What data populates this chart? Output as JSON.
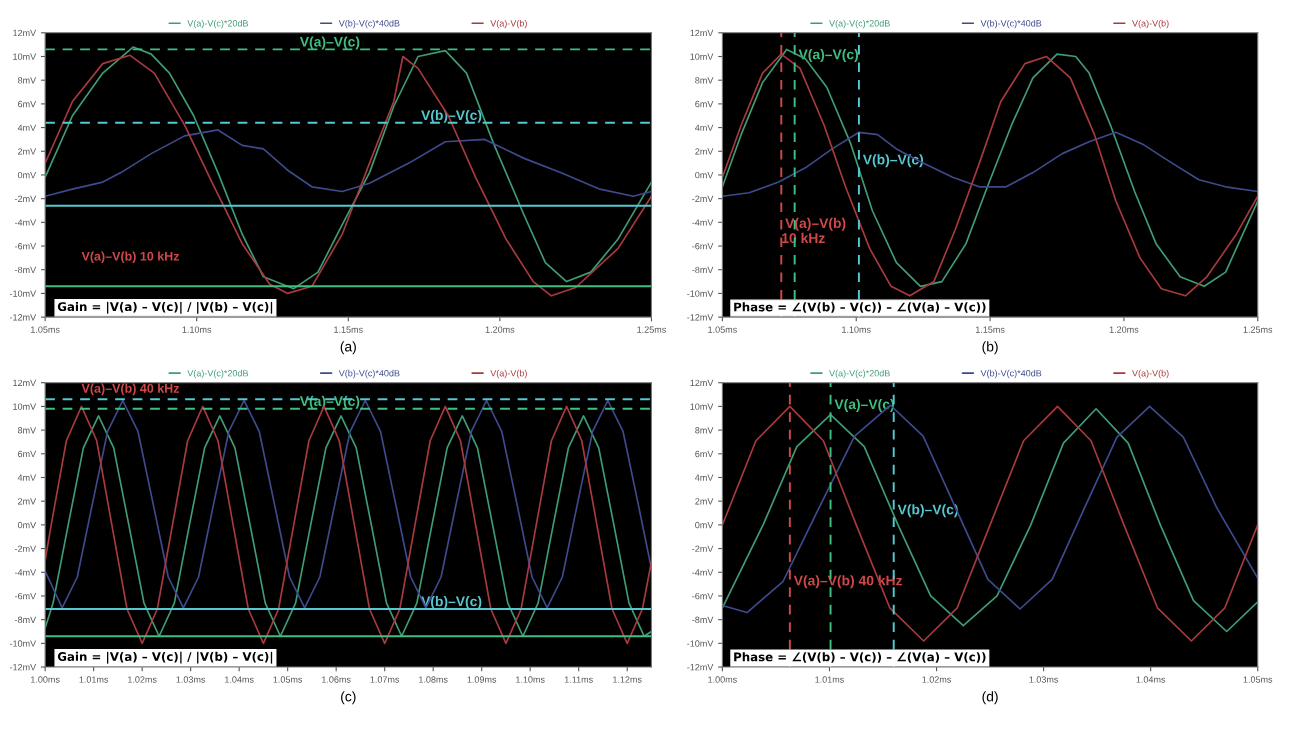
{
  "chart_data": [
    {
      "type": "line",
      "xlim": [
        1.05,
        1.25
      ],
      "xticks": [
        {
          "value": 1.05,
          "label": "1.05ms"
        },
        {
          "value": 1.1,
          "label": "1.10ms"
        },
        {
          "value": 1.15,
          "label": "1.15ms"
        },
        {
          "value": 1.2,
          "label": "1.20ms"
        },
        {
          "value": 1.25,
          "label": "1.25ms"
        }
      ],
      "ylim": [
        -12,
        12
      ],
      "yticks": [
        {
          "value": 12,
          "label": "12mV"
        },
        {
          "value": 10,
          "label": "10mV"
        },
        {
          "value": 8,
          "label": "8mV"
        },
        {
          "value": 6,
          "label": "6mV"
        },
        {
          "value": 4,
          "label": "4mV"
        },
        {
          "value": 2,
          "label": "2mV"
        },
        {
          "value": 0,
          "label": "0mV"
        },
        {
          "value": -2,
          "label": "-2mV"
        },
        {
          "value": -4,
          "label": "-4mV"
        },
        {
          "value": -6,
          "label": "-6mV"
        },
        {
          "value": -8,
          "label": "-8mV"
        },
        {
          "value": -10,
          "label": "-10mV"
        },
        {
          "value": -12,
          "label": "-12mV"
        }
      ],
      "grid": false,
      "legend": "top",
      "line_style": "solid",
      "series": [
        {
          "name": "V(a)-V(c)*20dB",
          "color": "#3f9c74",
          "x": [
            1.05,
            1.059,
            1.069,
            1.079,
            1.085,
            1.091,
            1.099,
            1.107,
            1.115,
            1.122,
            1.132,
            1.14,
            1.148,
            1.157,
            1.165,
            1.173,
            1.182,
            1.189,
            1.198,
            1.208,
            1.215,
            1.222,
            1.23,
            1.239,
            1.25
          ],
          "values": [
            -0.2,
            5.0,
            8.6,
            10.8,
            10.2,
            8.6,
            5.0,
            0.2,
            -5.0,
            -8.6,
            -9.6,
            -8.2,
            -4.2,
            0.2,
            5.8,
            10.0,
            10.5,
            8.6,
            2.6,
            -3.4,
            -7.4,
            -9.0,
            -8.2,
            -5.4,
            -0.6
          ]
        },
        {
          "name": "V(b)-V(c)*40dB",
          "color": "#3e4a8c",
          "x": [
            1.05,
            1.059,
            1.069,
            1.075,
            1.085,
            1.096,
            1.107,
            1.115,
            1.122,
            1.13,
            1.138,
            1.148,
            1.157,
            1.17,
            1.182,
            1.195,
            1.208,
            1.22,
            1.233,
            1.244,
            1.25
          ],
          "values": [
            -1.8,
            -1.2,
            -0.6,
            0.2,
            1.8,
            3.3,
            3.8,
            2.5,
            2.2,
            0.4,
            -1.0,
            -1.4,
            -0.7,
            1.0,
            2.8,
            3.0,
            1.4,
            0.2,
            -1.2,
            -1.8,
            -1.4
          ]
        },
        {
          "name": "V(a)-V(b)",
          "color": "#a83a3e",
          "x": [
            1.05,
            1.059,
            1.069,
            1.078,
            1.086,
            1.096,
            1.105,
            1.115,
            1.124,
            1.13,
            1.138,
            1.148,
            1.157,
            1.165,
            1.168,
            1.173,
            1.183,
            1.192,
            1.202,
            1.211,
            1.217,
            1.225,
            1.239,
            1.25
          ],
          "values": [
            1.0,
            6.2,
            9.4,
            10.1,
            8.6,
            4.2,
            -0.6,
            -5.8,
            -9.2,
            -10.0,
            -9.4,
            -5.0,
            1.0,
            6.2,
            10.0,
            9.0,
            5.0,
            -0.2,
            -5.4,
            -9.0,
            -10.2,
            -9.5,
            -6.2,
            -1.8
          ]
        }
      ],
      "ref_lines": [
        {
          "axis": "y",
          "value": 10.6,
          "label": "V(a)–V(c)",
          "color": "#3fbf80",
          "line_style": "dashed"
        },
        {
          "axis": "y",
          "value": 4.4,
          "label": "V(b)–V(c)",
          "color": "#55c8d0",
          "line_style": "dashed"
        },
        {
          "axis": "y",
          "value": -9.4,
          "label": null,
          "color": "#3fbf80",
          "line_style": "solid"
        },
        {
          "axis": "y",
          "value": -2.6,
          "label": null,
          "color": "#55c8d0",
          "line_style": "solid"
        }
      ],
      "annotations": [
        "Gain = |V(a) – V(c)| / |V(b) – V(c)|",
        "V(a)–V(b) 10 kHz",
        "(a)"
      ]
    },
    {
      "type": "line",
      "xlim": [
        1.05,
        1.25
      ],
      "xticks": [
        {
          "value": 1.05,
          "label": "1.05ms"
        },
        {
          "value": 1.1,
          "label": "1.10ms"
        },
        {
          "value": 1.15,
          "label": "1.15ms"
        },
        {
          "value": 1.2,
          "label": "1.20ms"
        },
        {
          "value": 1.25,
          "label": "1.25ms"
        }
      ],
      "ylim": [
        -12,
        12
      ],
      "yticks": [
        {
          "value": 12,
          "label": "12mV"
        },
        {
          "value": 10,
          "label": "10mV"
        },
        {
          "value": 8,
          "label": "8mV"
        },
        {
          "value": 6,
          "label": "6mV"
        },
        {
          "value": 4,
          "label": "4mV"
        },
        {
          "value": 2,
          "label": "2mV"
        },
        {
          "value": 0,
          "label": "0mV"
        },
        {
          "value": -2,
          "label": "-2mV"
        },
        {
          "value": -4,
          "label": "-4mV"
        },
        {
          "value": -6,
          "label": "-6mV"
        },
        {
          "value": -8,
          "label": "-8mV"
        },
        {
          "value": -10,
          "label": "-10mV"
        },
        {
          "value": -12,
          "label": "-12mV"
        }
      ],
      "grid": false,
      "legend": "top",
      "line_style": "solid",
      "series": [
        {
          "name": "V(a)-V(c)*20dB",
          "color": "#3f9c74",
          "x": [
            1.05,
            1.057,
            1.065,
            1.074,
            1.081,
            1.089,
            1.098,
            1.106,
            1.115,
            1.124,
            1.132,
            1.141,
            1.149,
            1.158,
            1.166,
            1.175,
            1.182,
            1.187,
            1.195,
            1.204,
            1.212,
            1.221,
            1.23,
            1.238,
            1.25
          ],
          "values": [
            -1.0,
            3.4,
            7.8,
            10.6,
            9.8,
            7.4,
            2.6,
            -3.0,
            -7.4,
            -9.4,
            -9.0,
            -5.8,
            -1.0,
            4.2,
            8.2,
            10.2,
            10.0,
            8.6,
            4.2,
            -1.4,
            -5.8,
            -8.6,
            -9.4,
            -8.2,
            -2.2
          ]
        },
        {
          "name": "V(b)-V(c)*40dB",
          "color": "#3e4a8c",
          "x": [
            1.05,
            1.06,
            1.071,
            1.081,
            1.091,
            1.101,
            1.108,
            1.115,
            1.125,
            1.136,
            1.146,
            1.156,
            1.166,
            1.177,
            1.187,
            1.197,
            1.207,
            1.218,
            1.228,
            1.238,
            1.25
          ],
          "values": [
            -1.8,
            -1.5,
            -0.6,
            0.6,
            2.2,
            3.6,
            3.4,
            2.2,
            1.0,
            -0.2,
            -1.0,
            -1.0,
            0.2,
            1.8,
            2.8,
            3.6,
            2.6,
            1.0,
            -0.4,
            -1.0,
            -1.4
          ]
        },
        {
          "name": "V(a)-V(b)",
          "color": "#a83a3e",
          "x": [
            1.05,
            1.057,
            1.065,
            1.072,
            1.079,
            1.088,
            1.096,
            1.105,
            1.113,
            1.12,
            1.129,
            1.137,
            1.146,
            1.154,
            1.163,
            1.171,
            1.18,
            1.189,
            1.197,
            1.206,
            1.214,
            1.223,
            1.231,
            1.242,
            1.25
          ],
          "values": [
            -0.2,
            4.2,
            8.6,
            10.2,
            9.0,
            4.2,
            -1.0,
            -6.2,
            -9.4,
            -10.2,
            -9.0,
            -4.6,
            1.0,
            6.2,
            9.4,
            10.0,
            8.2,
            3.4,
            -2.2,
            -7.0,
            -9.6,
            -10.2,
            -8.6,
            -5.0,
            -1.8
          ]
        }
      ],
      "ref_lines": [
        {
          "axis": "x",
          "value": 1.077,
          "label": "V(a)–V(c)",
          "color": "#3fbf80",
          "line_style": "dashed"
        },
        {
          "axis": "x",
          "value": 1.101,
          "label": "V(b)–V(c)",
          "color": "#55c8d0",
          "line_style": "dashed"
        },
        {
          "axis": "x",
          "value": 1.072,
          "label": "V(a)–V(b)\n10 kHz",
          "color": "#d04848",
          "line_style": "dashed"
        }
      ],
      "annotations": [
        "Phase = ∠(V(b) – V(c)) – ∠(V(a) – V(c))",
        "(b)"
      ]
    },
    {
      "type": "line",
      "xlim": [
        1.0,
        1.125
      ],
      "xticks": [
        {
          "value": 1.0,
          "label": "1.00ms"
        },
        {
          "value": 1.01,
          "label": "1.01ms"
        },
        {
          "value": 1.02,
          "label": "1.02ms"
        },
        {
          "value": 1.03,
          "label": "1.03ms"
        },
        {
          "value": 1.04,
          "label": "1.04ms"
        },
        {
          "value": 1.05,
          "label": "1.05ms"
        },
        {
          "value": 1.06,
          "label": "1.06ms"
        },
        {
          "value": 1.07,
          "label": "1.07ms"
        },
        {
          "value": 1.08,
          "label": "1.08ms"
        },
        {
          "value": 1.09,
          "label": "1.09ms"
        },
        {
          "value": 1.1,
          "label": "1.10ms"
        },
        {
          "value": 1.11,
          "label": "1.11ms"
        },
        {
          "value": 1.12,
          "label": "1.12ms"
        }
      ],
      "ylim": [
        -12,
        12
      ],
      "yticks": [
        {
          "value": 12,
          "label": "12mV"
        },
        {
          "value": 10,
          "label": "10mV"
        },
        {
          "value": 8,
          "label": "8mV"
        },
        {
          "value": 6,
          "label": "6mV"
        },
        {
          "value": 4,
          "label": "4mV"
        },
        {
          "value": 2,
          "label": "2mV"
        },
        {
          "value": 0,
          "label": "0mV"
        },
        {
          "value": -2,
          "label": "-2mV"
        },
        {
          "value": -4,
          "label": "-4mV"
        },
        {
          "value": -6,
          "label": "-6mV"
        },
        {
          "value": -8,
          "label": "-8mV"
        },
        {
          "value": -10,
          "label": "-10mV"
        },
        {
          "value": -12,
          "label": "-12mV"
        }
      ],
      "grid": false,
      "legend": "top",
      "line_style": "solid",
      "series": [
        {
          "name": "V(a)-V(c)*20dB",
          "color": "#3f9c74",
          "x": [
            1.0,
            1.00163,
            1.00475,
            1.00788,
            1.011,
            1.01413,
            1.01725,
            1.02038,
            1.0235,
            1.02663,
            1.02975,
            1.03288,
            1.036,
            1.03913,
            1.04225,
            1.04538,
            1.0485,
            1.05163,
            1.05475,
            1.05788,
            1.061,
            1.06413,
            1.06725,
            1.07038,
            1.0735,
            1.07663,
            1.07975,
            1.08288,
            1.086,
            1.08913,
            1.09225,
            1.09538,
            1.0985,
            1.10163,
            1.10475,
            1.10788,
            1.111,
            1.11413,
            1.11725,
            1.12038,
            1.1235,
            1.125
          ],
          "values": [
            -8.7,
            -6.6,
            0,
            6.5,
            9.2,
            6.5,
            0,
            -6.6,
            -9.4,
            -6.6,
            0,
            6.5,
            9.2,
            6.5,
            0,
            -6.6,
            -9.4,
            -6.6,
            0,
            6.5,
            9.2,
            6.5,
            0,
            -6.6,
            -9.4,
            -6.6,
            0,
            6.5,
            9.2,
            6.5,
            0,
            -6.6,
            -9.4,
            -6.6,
            0,
            6.5,
            9.2,
            6.5,
            0,
            -6.6,
            -9.4,
            -9.0
          ]
        },
        {
          "name": "V(b)-V(c)*40dB",
          "color": "#3e4a8c",
          "x": [
            1.0,
            1.0035,
            1.00663,
            1.00975,
            1.01288,
            1.016,
            1.01913,
            1.02225,
            1.02538,
            1.0285,
            1.03163,
            1.03475,
            1.03788,
            1.041,
            1.04413,
            1.04725,
            1.05038,
            1.0535,
            1.05663,
            1.05975,
            1.06288,
            1.066,
            1.06913,
            1.07225,
            1.07538,
            1.0785,
            1.08163,
            1.08475,
            1.08788,
            1.091,
            1.09413,
            1.09725,
            1.10038,
            1.1035,
            1.10663,
            1.10975,
            1.11288,
            1.116,
            1.11913,
            1.12225,
            1.125
          ],
          "values": [
            -3.9,
            -7.0,
            -4.4,
            1.8,
            7.9,
            10.5,
            7.9,
            1.8,
            -4.4,
            -7.0,
            -4.4,
            1.8,
            7.9,
            10.5,
            7.9,
            1.8,
            -4.4,
            -7.0,
            -4.4,
            1.8,
            7.9,
            10.5,
            7.9,
            1.8,
            -4.4,
            -7.0,
            -4.4,
            1.8,
            7.9,
            10.5,
            7.9,
            1.8,
            -4.4,
            -7.0,
            -4.4,
            1.8,
            7.9,
            10.5,
            7.9,
            1.8,
            -3.7
          ]
        },
        {
          "name": "V(a)-V(b)",
          "color": "#a83a3e",
          "x": [
            1.0,
            1.00125,
            1.00438,
            1.0075,
            1.01063,
            1.01375,
            1.01688,
            1.02,
            1.02313,
            1.02625,
            1.02938,
            1.0325,
            1.03563,
            1.03875,
            1.04188,
            1.045,
            1.04813,
            1.05125,
            1.05438,
            1.0575,
            1.06063,
            1.06375,
            1.06688,
            1.07,
            1.07313,
            1.07625,
            1.07938,
            1.0825,
            1.08563,
            1.08875,
            1.09188,
            1.095,
            1.09813,
            1.10125,
            1.10438,
            1.1075,
            1.11063,
            1.11375,
            1.11688,
            1.12,
            1.12313,
            1.125
          ],
          "values": [
            -3.0,
            0,
            7.1,
            10,
            7.1,
            0,
            -7.1,
            -10,
            -7.1,
            0,
            7.1,
            10,
            7.1,
            0,
            -7.1,
            -10,
            -7.1,
            0,
            7.1,
            10,
            7.1,
            0,
            -7.1,
            -10,
            -7.1,
            0,
            7.1,
            10,
            7.1,
            0,
            -7.1,
            -10,
            -7.1,
            0,
            7.1,
            10,
            7.1,
            0,
            -7.1,
            -10,
            -7.1,
            -3.1
          ]
        }
      ],
      "ref_lines": [
        {
          "axis": "y",
          "value": 9.8,
          "label": "V(a)–V(c)",
          "color": "#3fbf80",
          "line_style": "dashed"
        },
        {
          "axis": "y",
          "value": 10.6,
          "label": null,
          "color": "#55c8d0",
          "line_style": "dashed"
        },
        {
          "axis": "y",
          "value": -9.4,
          "label": null,
          "color": "#3fbf80",
          "line_style": "solid"
        },
        {
          "axis": "y",
          "value": -7.1,
          "label": "V(b)–V(c)",
          "color": "#55c8d0",
          "line_style": "solid"
        }
      ],
      "annotations": [
        "Gain = |V(a) – V(c)| / |V(b) – V(c)|",
        "V(a)–V(b) 40 kHz",
        "(c)"
      ]
    },
    {
      "type": "line",
      "xlim": [
        1.0,
        1.05
      ],
      "xticks": [
        {
          "value": 1.0,
          "label": "1.00ms"
        },
        {
          "value": 1.01,
          "label": "1.01ms"
        },
        {
          "value": 1.02,
          "label": "1.02ms"
        },
        {
          "value": 1.03,
          "label": "1.03ms"
        },
        {
          "value": 1.04,
          "label": "1.04ms"
        },
        {
          "value": 1.05,
          "label": "1.05ms"
        }
      ],
      "ylim": [
        -12,
        12
      ],
      "yticks": [
        {
          "value": 12,
          "label": "12mV"
        },
        {
          "value": 10,
          "label": "10mV"
        },
        {
          "value": 8,
          "label": "8mV"
        },
        {
          "value": 6,
          "label": "6mV"
        },
        {
          "value": 4,
          "label": "4mV"
        },
        {
          "value": 2,
          "label": "2mV"
        },
        {
          "value": 0,
          "label": "0mV"
        },
        {
          "value": -2,
          "label": "-2mV"
        },
        {
          "value": -4,
          "label": "-4mV"
        },
        {
          "value": -6,
          "label": "-6mV"
        },
        {
          "value": -8,
          "label": "-8mV"
        },
        {
          "value": -10,
          "label": "-10mV"
        },
        {
          "value": -12,
          "label": "-12mV"
        }
      ],
      "grid": false,
      "legend": "top",
      "line_style": "solid",
      "series": [
        {
          "name": "V(a)-V(c)*20dB",
          "color": "#3f9c74",
          "x": [
            1.0,
            1.0038,
            1.00695,
            1.0101,
            1.01325,
            1.0164,
            1.01945,
            1.0225,
            1.02565,
            1.0288,
            1.03185,
            1.0349,
            1.0379,
            1.0409,
            1.044,
            1.0471,
            1.05
          ],
          "values": [
            -7.0,
            0,
            6.6,
            9.3,
            6.6,
            0,
            -6.0,
            -8.5,
            -6.0,
            0,
            6.9,
            9.8,
            6.9,
            0,
            -6.4,
            -9.0,
            -6.5
          ]
        },
        {
          "name": "V(b)-V(c)*40dB",
          "color": "#3e4a8c",
          "x": [
            1.0,
            1.0023,
            1.00565,
            1.009,
            1.01235,
            1.0157,
            1.01875,
            1.0218,
            1.0248,
            1.0278,
            1.0308,
            1.0338,
            1.03685,
            1.0399,
            1.04305,
            1.0462,
            1.05
          ],
          "values": [
            -6.8,
            -7.4,
            -4.8,
            1.4,
            7.5,
            10.1,
            7.5,
            1.4,
            -4.6,
            -7.1,
            -4.6,
            1.4,
            7.4,
            10.0,
            7.4,
            1.4,
            -4.5
          ]
        },
        {
          "name": "V(a)-V(b)",
          "color": "#a83a3e",
          "x": [
            1.0,
            1.00313,
            1.0063,
            1.00943,
            1.0125,
            1.01563,
            1.0188,
            1.02193,
            1.025,
            1.02813,
            1.0313,
            1.03443,
            1.0375,
            1.04063,
            1.0438,
            1.04693,
            1.05
          ],
          "values": [
            0,
            7.1,
            10,
            7.1,
            0,
            -7.0,
            -9.8,
            -7.0,
            0,
            7.1,
            10,
            7.1,
            0,
            -7.0,
            -9.8,
            -7.0,
            0
          ]
        }
      ],
      "ref_lines": [
        {
          "axis": "x",
          "value": 1.0101,
          "label": "V(a)–V(c)",
          "color": "#3fbf80",
          "line_style": "dashed"
        },
        {
          "axis": "x",
          "value": 1.016,
          "label": "V(b)–V(c)",
          "color": "#55c8d0",
          "line_style": "dashed"
        },
        {
          "axis": "x",
          "value": 1.0063,
          "label": "V(a)–V(b) 40 kHz",
          "color": "#d04848",
          "line_style": "dashed"
        }
      ],
      "annotations": [
        "Phase = ∠(V(b) – V(c)) – ∠(V(a) – V(c))",
        "(d)"
      ]
    }
  ]
}
